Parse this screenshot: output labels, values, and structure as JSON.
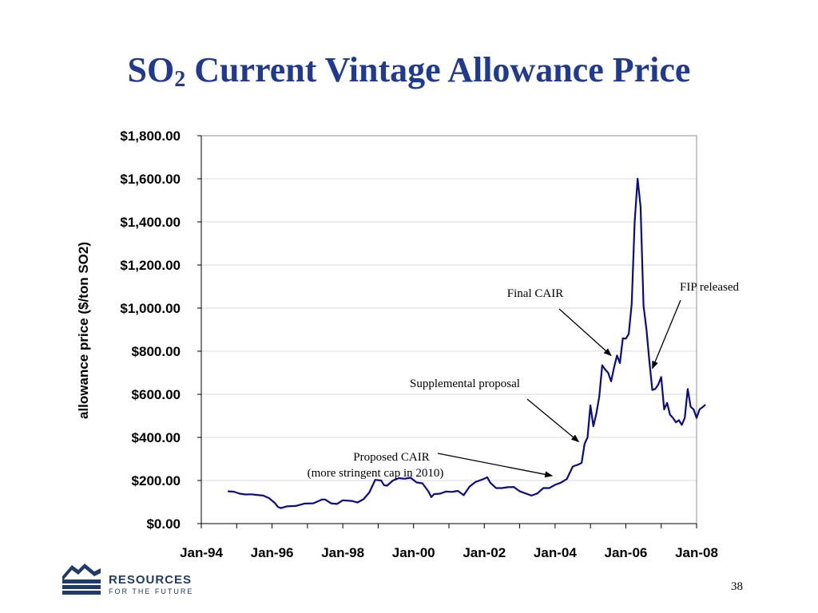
{
  "slide": {
    "title_main": "SO",
    "title_sub": "2",
    "title_rest": " Current Vintage Allowance Price",
    "page_number": "38"
  },
  "logo": {
    "line1": "RESOURCES",
    "line2": "FOR THE FUTURE"
  },
  "chart_data": {
    "type": "line",
    "title": "SO2 Current Vintage Allowance Price",
    "xlabel": "",
    "ylabel": "allowance price ($/ton SO2)",
    "ylim": [
      0,
      1800
    ],
    "xlim": [
      "1994-01",
      "2008-01"
    ],
    "grid": "horizontal",
    "y_ticks": [
      "$0.00",
      "$200.00",
      "$400.00",
      "$600.00",
      "$800.00",
      "$1,000.00",
      "$1,200.00",
      "$1,400.00",
      "$1,600.00",
      "$1,800.00"
    ],
    "x_ticks": [
      "Jan-94",
      "Jan-96",
      "Jan-98",
      "Jan-00",
      "Jan-02",
      "Jan-04",
      "Jan-06",
      "Jan-08"
    ],
    "colors": {
      "line": "#0a0a8a",
      "grid": "#d9d9d9"
    },
    "series": [
      {
        "points": [
          [
            "1994-10",
            150
          ],
          [
            "1994-12",
            148
          ],
          [
            "1995-02",
            139
          ],
          [
            "1995-04",
            135
          ],
          [
            "1995-06",
            136
          ],
          [
            "1995-08",
            133
          ],
          [
            "1995-10",
            130
          ],
          [
            "1995-12",
            118
          ],
          [
            "1996-02",
            95
          ],
          [
            "1996-03",
            77
          ],
          [
            "1996-04",
            72
          ],
          [
            "1996-06",
            80
          ],
          [
            "1996-09",
            82
          ],
          [
            "1996-12",
            93
          ],
          [
            "1997-03",
            94
          ],
          [
            "1997-06",
            112
          ],
          [
            "1997-07",
            112
          ],
          [
            "1997-09",
            94
          ],
          [
            "1997-11",
            91
          ],
          [
            "1998-01",
            108
          ],
          [
            "1998-04",
            105
          ],
          [
            "1998-06",
            98
          ],
          [
            "1998-08",
            113
          ],
          [
            "1998-10",
            145
          ],
          [
            "1998-12",
            203
          ],
          [
            "1999-02",
            200
          ],
          [
            "1999-03",
            178
          ],
          [
            "1999-04",
            176
          ],
          [
            "1999-06",
            200
          ],
          [
            "1999-08",
            211
          ],
          [
            "1999-10",
            208
          ],
          [
            "1999-12",
            213
          ],
          [
            "2000-02",
            191
          ],
          [
            "2000-04",
            187
          ],
          [
            "2000-06",
            150
          ],
          [
            "2000-07",
            123
          ],
          [
            "2000-08",
            137
          ],
          [
            "2000-10",
            139
          ],
          [
            "2000-12",
            149
          ],
          [
            "2001-02",
            147
          ],
          [
            "2001-04",
            152
          ],
          [
            "2001-06",
            132
          ],
          [
            "2001-08",
            172
          ],
          [
            "2001-10",
            193
          ],
          [
            "2001-12",
            203
          ],
          [
            "2002-02",
            215
          ],
          [
            "2002-03",
            190
          ],
          [
            "2002-05",
            165
          ],
          [
            "2002-07",
            165
          ],
          [
            "2002-09",
            169
          ],
          [
            "2002-11",
            170
          ],
          [
            "2003-01",
            150
          ],
          [
            "2003-03",
            140
          ],
          [
            "2003-05",
            130
          ],
          [
            "2003-07",
            140
          ],
          [
            "2003-09",
            165
          ],
          [
            "2003-11",
            165
          ],
          [
            "2004-01",
            180
          ],
          [
            "2004-03",
            190
          ],
          [
            "2004-05",
            207
          ],
          [
            "2004-07",
            265
          ],
          [
            "2004-09",
            275
          ],
          [
            "2004-10",
            282
          ],
          [
            "2004-11",
            370
          ],
          [
            "2004-12",
            400
          ],
          [
            "2005-01",
            548
          ],
          [
            "2005-02",
            452
          ],
          [
            "2005-03",
            510
          ],
          [
            "2005-04",
            590
          ],
          [
            "2005-05",
            735
          ],
          [
            "2005-06",
            715
          ],
          [
            "2005-07",
            700
          ],
          [
            "2005-08",
            660
          ],
          [
            "2005-09",
            725
          ],
          [
            "2005-10",
            780
          ],
          [
            "2005-11",
            745
          ],
          [
            "2005-12",
            860
          ],
          [
            "2006-01",
            858
          ],
          [
            "2006-02",
            880
          ],
          [
            "2006-03",
            1020
          ],
          [
            "2006-04",
            1400
          ],
          [
            "2006-05",
            1600
          ],
          [
            "2006-06",
            1470
          ],
          [
            "2006-07",
            1010
          ],
          [
            "2006-08",
            900
          ],
          [
            "2006-09",
            750
          ],
          [
            "2006-10",
            620
          ],
          [
            "2006-11",
            625
          ],
          [
            "2006-12",
            645
          ],
          [
            "2007-01",
            680
          ],
          [
            "2007-02",
            530
          ],
          [
            "2007-03",
            560
          ],
          [
            "2007-04",
            505
          ],
          [
            "2007-05",
            490
          ],
          [
            "2007-06",
            470
          ],
          [
            "2007-07",
            480
          ],
          [
            "2007-08",
            458
          ],
          [
            "2007-09",
            490
          ],
          [
            "2007-10",
            625
          ],
          [
            "2007-11",
            542
          ],
          [
            "2007-12",
            530
          ],
          [
            "2008-01",
            490
          ],
          [
            "2008-02",
            530
          ],
          [
            "2008-03",
            540
          ],
          [
            "2008-04",
            552
          ]
        ]
      }
    ],
    "annotations": [
      {
        "id": "proposed",
        "lines": [
          "Proposed CAIR",
          "(more stringent cap in 2010)"
        ],
        "target": [
          "2003-12",
          222
        ]
      },
      {
        "id": "supplemental",
        "lines": [
          "Supplemental proposal"
        ],
        "target": [
          "2004-09",
          380
        ]
      },
      {
        "id": "final",
        "lines": [
          "Final CAIR"
        ],
        "target": [
          "2005-08",
          780
        ]
      },
      {
        "id": "fip",
        "lines": [
          "FIP released"
        ],
        "target": [
          "2006-10",
          720
        ]
      }
    ]
  }
}
